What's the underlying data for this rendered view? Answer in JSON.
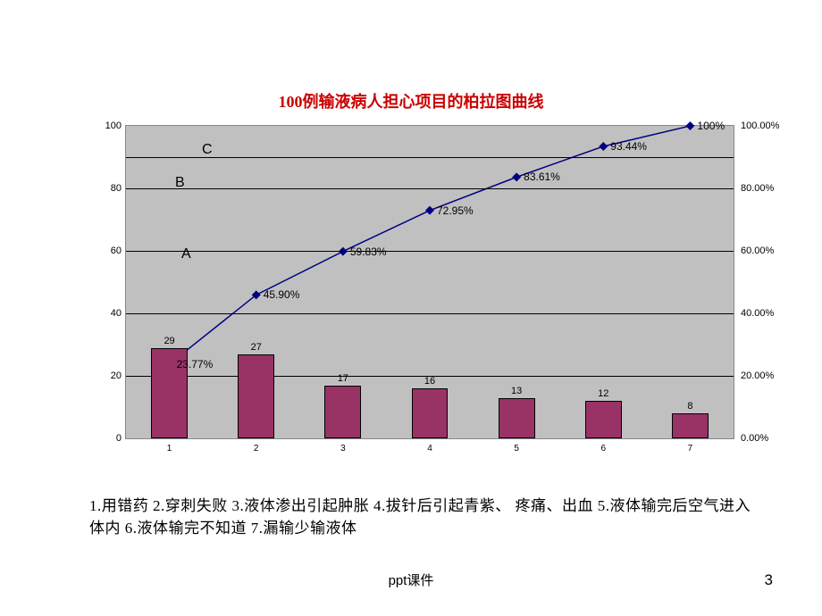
{
  "title": {
    "text": "100例输液病人担心项目的柏拉图曲线",
    "color": "#cc0000",
    "fontsize": 18
  },
  "chart": {
    "type": "pareto",
    "plot_background": "#c0c0c0",
    "gridline_color": "#000000",
    "left_axis": {
      "min": 0,
      "max": 100,
      "step": 20,
      "ticks": [
        "0",
        "20",
        "40",
        "60",
        "80",
        "100"
      ]
    },
    "right_axis": {
      "min": 0,
      "max": 100,
      "step": 20,
      "ticks": [
        "0.00%",
        "20.00%",
        "40.00%",
        "60.00%",
        "80.00%",
        "100.00%"
      ]
    },
    "categories": [
      "1",
      "2",
      "3",
      "4",
      "5",
      "6",
      "7"
    ],
    "bars": {
      "values": [
        29,
        27,
        17,
        16,
        13,
        12,
        8
      ],
      "color": "#993366",
      "width_ratio": 0.42
    },
    "line": {
      "values": [
        23.77,
        45.9,
        59.83,
        72.95,
        83.61,
        93.44,
        100
      ],
      "labels": [
        "23.77%",
        "45.90%",
        "59.83%",
        "72.95%",
        "83.61%",
        "93.44%",
        "100%"
      ],
      "color": "#000080",
      "marker": "diamond",
      "marker_size": 5
    },
    "zones": {
      "A": {
        "label": "A",
        "below": 80
      },
      "B": {
        "label": "B",
        "at": 85
      },
      "C": {
        "label": "C",
        "above": 90
      },
      "reference_lines": [
        80,
        90
      ]
    }
  },
  "legend_text": "1.用错药 2.穿刺失败 3.液体渗出引起肿胀 4.拔针后引起青紫、  疼痛、出血 5.液体输完后空气进入体内 6.液体输完不知道  7.漏输少输液体",
  "footer": "ppt课件",
  "page_number": "3"
}
